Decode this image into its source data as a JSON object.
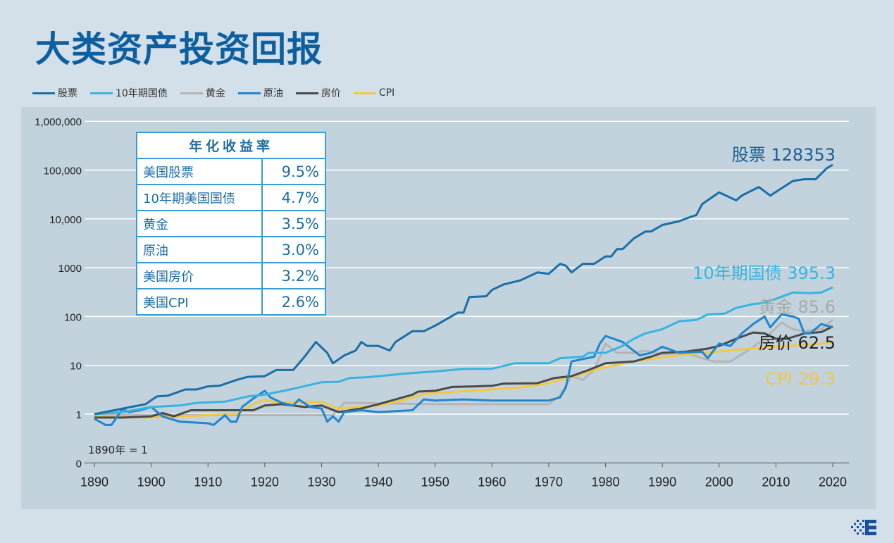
{
  "title": "大类资产投资回报",
  "legend": [
    {
      "label": "股票",
      "color": "#1b6fa6"
    },
    {
      "label": "10年期国债",
      "color": "#38b4df"
    },
    {
      "label": "黄金",
      "color": "#b5b5b5"
    },
    {
      "label": "原油",
      "color": "#2185cf"
    },
    {
      "label": "房价",
      "color": "#4a4a4a"
    },
    {
      "label": "CPI",
      "color": "#f2c744"
    }
  ],
  "table": {
    "header": "年化收益率",
    "rows": [
      {
        "name": "美国股票",
        "value": "9.5%"
      },
      {
        "name": "10年期美国国债",
        "value": "4.7%"
      },
      {
        "name": "黄金",
        "value": "3.5%"
      },
      {
        "name": "原油",
        "value": "3.0%"
      },
      {
        "name": "美国房价",
        "value": "3.2%"
      },
      {
        "name": "美国CPI",
        "value": "2.6%"
      }
    ]
  },
  "chart_data": {
    "type": "line",
    "title": "",
    "xlabel": "",
    "ylabel": "",
    "y_scale": "log",
    "annotation": "1890年 = 1",
    "xlim": [
      1890,
      2020
    ],
    "ylim": [
      0.1,
      1000000
    ],
    "grid": true,
    "legend_placement": "top-left",
    "x_ticks": [
      "1890",
      "1900",
      "1910",
      "1920",
      "1930",
      "1940",
      "1950",
      "1960",
      "1970",
      "1980",
      "1990",
      "2000",
      "2010",
      "2020"
    ],
    "y_ticks": [
      {
        "value": 1000000,
        "label": "1,000,000"
      },
      {
        "value": 100000,
        "label": "100,000"
      },
      {
        "value": 10000,
        "label": "10,000"
      },
      {
        "value": 1000,
        "label": "1000"
      },
      {
        "value": 100,
        "label": "100"
      },
      {
        "value": 10,
        "label": "10"
      },
      {
        "value": 1,
        "label": "1"
      },
      {
        "value": 0.1,
        "label": "0"
      }
    ],
    "series": [
      {
        "name": "股票",
        "color": "#1b6fa6",
        "end_label": "股票 128353",
        "points": [
          [
            1890,
            1
          ],
          [
            1895,
            1.3
          ],
          [
            1899,
            1.6
          ],
          [
            1901,
            2.3
          ],
          [
            1903,
            2.4
          ],
          [
            1906,
            3.2
          ],
          [
            1908,
            3.2
          ],
          [
            1910,
            3.7
          ],
          [
            1912,
            3.8
          ],
          [
            1915,
            5
          ],
          [
            1917,
            5.8
          ],
          [
            1920,
            6
          ],
          [
            1922,
            8
          ],
          [
            1925,
            8
          ],
          [
            1927,
            15
          ],
          [
            1929,
            30
          ],
          [
            1931,
            18
          ],
          [
            1932,
            11
          ],
          [
            1934,
            16
          ],
          [
            1936,
            20
          ],
          [
            1937,
            30
          ],
          [
            1938,
            25
          ],
          [
            1940,
            25
          ],
          [
            1942,
            20
          ],
          [
            1943,
            30
          ],
          [
            1946,
            50
          ],
          [
            1948,
            50
          ],
          [
            1950,
            65
          ],
          [
            1954,
            120
          ],
          [
            1955,
            120
          ],
          [
            1956,
            250
          ],
          [
            1959,
            260
          ],
          [
            1960,
            350
          ],
          [
            1962,
            450
          ],
          [
            1965,
            550
          ],
          [
            1968,
            800
          ],
          [
            1970,
            750
          ],
          [
            1972,
            1200
          ],
          [
            1973,
            1100
          ],
          [
            1974,
            800
          ],
          [
            1976,
            1200
          ],
          [
            1978,
            1200
          ],
          [
            1980,
            1700
          ],
          [
            1981,
            1700
          ],
          [
            1982,
            2400
          ],
          [
            1983,
            2400
          ],
          [
            1985,
            4000
          ],
          [
            1987,
            5500
          ],
          [
            1988,
            5500
          ],
          [
            1990,
            7500
          ],
          [
            1993,
            9000
          ],
          [
            1995,
            11000
          ],
          [
            1996,
            12000
          ],
          [
            1997,
            20000
          ],
          [
            2000,
            35000
          ],
          [
            2003,
            24000
          ],
          [
            2004,
            30000
          ],
          [
            2007,
            45000
          ],
          [
            2009,
            30000
          ],
          [
            2013,
            60000
          ],
          [
            2015,
            65000
          ],
          [
            2017,
            65000
          ],
          [
            2019,
            110000
          ],
          [
            2020,
            128353
          ]
        ]
      },
      {
        "name": "10年期国债",
        "color": "#38b4df",
        "end_label": "10年期国债 395.3",
        "points": [
          [
            1890,
            1
          ],
          [
            1895,
            1.1
          ],
          [
            1900,
            1.4
          ],
          [
            1905,
            1.5
          ],
          [
            1908,
            1.7
          ],
          [
            1913,
            1.8
          ],
          [
            1917,
            2.3
          ],
          [
            1920,
            2.5
          ],
          [
            1925,
            3.3
          ],
          [
            1930,
            4.5
          ],
          [
            1933,
            4.6
          ],
          [
            1935,
            5.5
          ],
          [
            1938,
            5.7
          ],
          [
            1940,
            6
          ],
          [
            1945,
            6.8
          ],
          [
            1950,
            7.5
          ],
          [
            1955,
            8.4
          ],
          [
            1960,
            8.5
          ],
          [
            1964,
            11
          ],
          [
            1970,
            11
          ],
          [
            1972,
            14
          ],
          [
            1976,
            15
          ],
          [
            1977,
            18
          ],
          [
            1980,
            18
          ],
          [
            1983,
            25
          ],
          [
            1985,
            35
          ],
          [
            1987,
            45
          ],
          [
            1990,
            55
          ],
          [
            1993,
            80
          ],
          [
            1996,
            85
          ],
          [
            1998,
            110
          ],
          [
            2001,
            115
          ],
          [
            2003,
            150
          ],
          [
            2006,
            180
          ],
          [
            2008,
            190
          ],
          [
            2010,
            230
          ],
          [
            2013,
            310
          ],
          [
            2016,
            300
          ],
          [
            2018,
            310
          ],
          [
            2020,
            395.3
          ]
        ]
      },
      {
        "name": "黄金",
        "color": "#b5b5b5",
        "end_label": "黄金 85.6",
        "points": [
          [
            1890,
            1
          ],
          [
            1900,
            0.95
          ],
          [
            1910,
            0.95
          ],
          [
            1920,
            0.95
          ],
          [
            1932,
            0.95
          ],
          [
            1934,
            1.7
          ],
          [
            1950,
            1.6
          ],
          [
            1960,
            1.6
          ],
          [
            1968,
            1.6
          ],
          [
            1970,
            1.6
          ],
          [
            1972,
            2.4
          ],
          [
            1974,
            6
          ],
          [
            1976,
            5
          ],
          [
            1978,
            8
          ],
          [
            1980,
            28
          ],
          [
            1982,
            18
          ],
          [
            1985,
            18
          ],
          [
            1987,
            20
          ],
          [
            1990,
            17
          ],
          [
            1994,
            18
          ],
          [
            1997,
            14
          ],
          [
            1999,
            12
          ],
          [
            2002,
            12
          ],
          [
            2005,
            20
          ],
          [
            2008,
            35
          ],
          [
            2011,
            75
          ],
          [
            2013,
            55
          ],
          [
            2015,
            50
          ],
          [
            2018,
            55
          ],
          [
            2020,
            85.6
          ]
        ]
      },
      {
        "name": "原油",
        "color": "#2185cf",
        "end_label": "",
        "points": [
          [
            1890,
            0.8
          ],
          [
            1892,
            0.6
          ],
          [
            1893,
            0.6
          ],
          [
            1895,
            1.3
          ],
          [
            1896,
            1.1
          ],
          [
            1898,
            1.2
          ],
          [
            1900,
            1.4
          ],
          [
            1902,
            0.9
          ],
          [
            1905,
            0.7
          ],
          [
            1910,
            0.65
          ],
          [
            1911,
            0.6
          ],
          [
            1913,
            0.95
          ],
          [
            1914,
            0.7
          ],
          [
            1915,
            0.7
          ],
          [
            1916,
            1.4
          ],
          [
            1918,
            2.1
          ],
          [
            1920,
            3
          ],
          [
            1921,
            2.2
          ],
          [
            1923,
            1.7
          ],
          [
            1925,
            1.5
          ],
          [
            1926,
            2
          ],
          [
            1928,
            1.4
          ],
          [
            1930,
            1.3
          ],
          [
            1931,
            0.7
          ],
          [
            1932,
            0.9
          ],
          [
            1933,
            0.7
          ],
          [
            1934,
            1.1
          ],
          [
            1937,
            1.2
          ],
          [
            1940,
            1.1
          ],
          [
            1946,
            1.2
          ],
          [
            1948,
            2
          ],
          [
            1950,
            1.9
          ],
          [
            1955,
            2
          ],
          [
            1960,
            1.9
          ],
          [
            1970,
            1.9
          ],
          [
            1972,
            2.2
          ],
          [
            1973,
            3.5
          ],
          [
            1974,
            12
          ],
          [
            1978,
            15
          ],
          [
            1979,
            28
          ],
          [
            1980,
            40
          ],
          [
            1983,
            30
          ],
          [
            1986,
            16
          ],
          [
            1988,
            18
          ],
          [
            1990,
            24
          ],
          [
            1993,
            18
          ],
          [
            1997,
            19
          ],
          [
            1998,
            14
          ],
          [
            2000,
            28
          ],
          [
            2002,
            25
          ],
          [
            2004,
            45
          ],
          [
            2006,
            70
          ],
          [
            2008,
            100
          ],
          [
            2009,
            60
          ],
          [
            2011,
            110
          ],
          [
            2013,
            100
          ],
          [
            2014,
            90
          ],
          [
            2015,
            45
          ],
          [
            2016,
            45
          ],
          [
            2018,
            70
          ],
          [
            2020,
            60
          ]
        ]
      },
      {
        "name": "房价",
        "color": "#4a4a4a",
        "end_label": "房价 62.5",
        "points": [
          [
            1890,
            0.85
          ],
          [
            1895,
            0.85
          ],
          [
            1900,
            0.9
          ],
          [
            1902,
            1.05
          ],
          [
            1904,
            0.9
          ],
          [
            1907,
            1.2
          ],
          [
            1915,
            1.2
          ],
          [
            1918,
            1.2
          ],
          [
            1920,
            1.5
          ],
          [
            1923,
            1.6
          ],
          [
            1927,
            1.4
          ],
          [
            1930,
            1.5
          ],
          [
            1933,
            1.1
          ],
          [
            1937,
            1.3
          ],
          [
            1940,
            1.6
          ],
          [
            1946,
            2.5
          ],
          [
            1947,
            2.9
          ],
          [
            1950,
            3
          ],
          [
            1953,
            3.6
          ],
          [
            1957,
            3.7
          ],
          [
            1960,
            3.8
          ],
          [
            1962,
            4.2
          ],
          [
            1968,
            4.3
          ],
          [
            1971,
            5.5
          ],
          [
            1974,
            6
          ],
          [
            1977,
            8
          ],
          [
            1980,
            11
          ],
          [
            1985,
            12
          ],
          [
            1988,
            15
          ],
          [
            1990,
            18
          ],
          [
            1994,
            19
          ],
          [
            1998,
            22
          ],
          [
            2000,
            25
          ],
          [
            2003,
            35
          ],
          [
            2006,
            47
          ],
          [
            2008,
            45
          ],
          [
            2010,
            35
          ],
          [
            2012,
            35
          ],
          [
            2015,
            45
          ],
          [
            2018,
            48
          ],
          [
            2020,
            62.5
          ]
        ]
      },
      {
        "name": "CPI",
        "color": "#f2c744",
        "end_label": "CPI 29.3",
        "points": [
          [
            1890,
            0.9
          ],
          [
            1900,
            0.85
          ],
          [
            1910,
            0.95
          ],
          [
            1915,
            1
          ],
          [
            1918,
            1.6
          ],
          [
            1920,
            2
          ],
          [
            1922,
            1.7
          ],
          [
            1930,
            1.8
          ],
          [
            1933,
            1.3
          ],
          [
            1940,
            1.5
          ],
          [
            1945,
            2
          ],
          [
            1948,
            2.6
          ],
          [
            1950,
            2.7
          ],
          [
            1960,
            3.2
          ],
          [
            1965,
            3.5
          ],
          [
            1970,
            4.3
          ],
          [
            1975,
            6.3
          ],
          [
            1980,
            9.2
          ],
          [
            1985,
            12
          ],
          [
            1990,
            14.6
          ],
          [
            1995,
            17
          ],
          [
            2000,
            19.2
          ],
          [
            2005,
            22
          ],
          [
            2010,
            24
          ],
          [
            2015,
            26
          ],
          [
            2020,
            29.3
          ]
        ]
      }
    ]
  }
}
